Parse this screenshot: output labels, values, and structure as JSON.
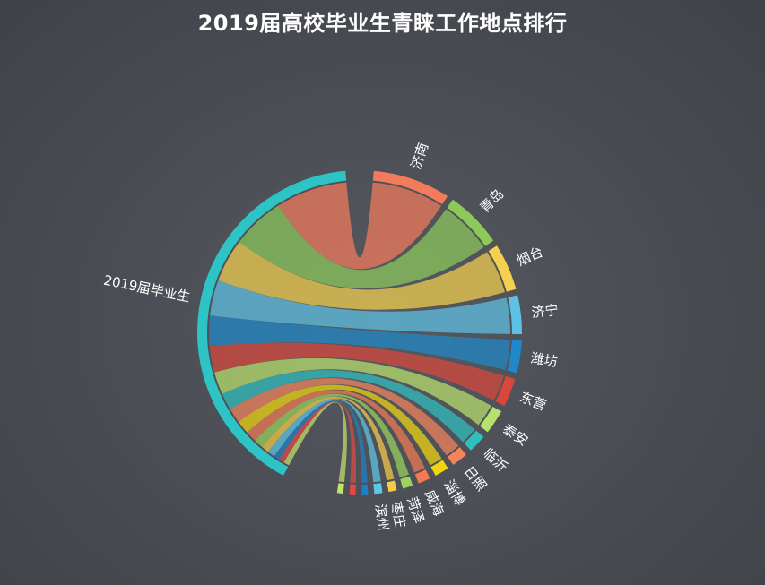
{
  "chart_data": {
    "type": "chord",
    "title": "2019届高校毕业生青睐工作地点排行",
    "source": {
      "name": "2019届毕业生",
      "color": "#2ec4c6"
    },
    "targets": [
      {
        "name": "济南",
        "value": 38,
        "color": "#f47a5c"
      },
      {
        "name": "青岛",
        "value": 28,
        "color": "#8cc95a"
      },
      {
        "name": "烟台",
        "value": 23,
        "color": "#f5d04e"
      },
      {
        "name": "济宁",
        "value": 19,
        "color": "#5ec0e4"
      },
      {
        "name": "潍坊",
        "value": 16,
        "color": "#1e88c9"
      },
      {
        "name": "东营",
        "value": 14,
        "color": "#d9463c"
      },
      {
        "name": "泰安",
        "value": 12,
        "color": "#b8e06c"
      },
      {
        "name": "临沂",
        "value": 9,
        "color": "#2fbfbf"
      },
      {
        "name": "日照",
        "value": 8,
        "color": "#f4845c"
      },
      {
        "name": "淄博",
        "value": 7,
        "color": "#f1d60f"
      },
      {
        "name": "威海",
        "value": 6,
        "color": "#f37a52"
      },
      {
        "name": "菏泽",
        "value": 5,
        "color": "#9bd35c"
      },
      {
        "name": "枣庄",
        "value": 4,
        "color": "#f7cb4a"
      },
      {
        "name": "滨州",
        "value": 4,
        "color": "#5cc7e6"
      },
      {
        "name": "",
        "value": 3,
        "color": "#1e7fc8"
      },
      {
        "name": "",
        "value": 3,
        "color": "#e04848"
      },
      {
        "name": "",
        "value": 3,
        "color": "#c5e06c"
      }
    ]
  }
}
